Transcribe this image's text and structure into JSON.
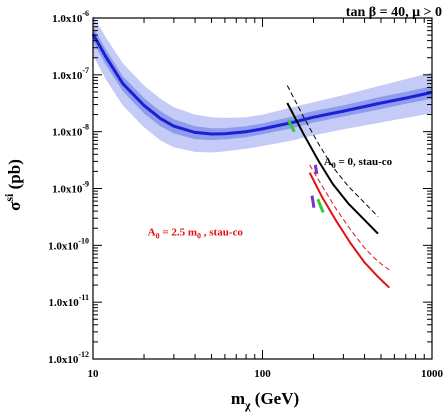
{
  "chart_data": {
    "type": "line",
    "title": "tan β = 40,  μ > 0",
    "xlabel": {
      "main": "m",
      "sub": "χ",
      "rest": " (GeV)"
    },
    "ylabel": {
      "main": "σ",
      "sup": "si",
      "rest": " (pb)"
    },
    "xscale": "log",
    "yscale": "log",
    "xlim": [
      10,
      1000
    ],
    "ylim": [
      1e-12,
      1e-06
    ],
    "x_ticks": [
      {
        "value": 10,
        "label": "10"
      },
      {
        "value": 100,
        "label": "100"
      },
      {
        "value": 1000,
        "label": "1000"
      }
    ],
    "y_ticks": [
      {
        "value": 1e-12,
        "label": "1.0x10",
        "exp": "-12"
      },
      {
        "value": 1e-11,
        "label": "1.0x10",
        "exp": "-11"
      },
      {
        "value": 1e-10,
        "label": "1.0x10",
        "exp": "-10"
      },
      {
        "value": 1e-09,
        "label": "1.0x10",
        "exp": "-9"
      },
      {
        "value": 1e-08,
        "label": "1.0x10",
        "exp": "-8"
      },
      {
        "value": 1e-07,
        "label": "1.0x10",
        "exp": "-7"
      },
      {
        "value": 1e-06,
        "label": "1.0x10",
        "exp": "-6"
      }
    ],
    "bands": [
      {
        "color": "#c4cbf6",
        "x": [
          10,
          12,
          15,
          20,
          25,
          30,
          40,
          50,
          60,
          80,
          100,
          150,
          200,
          300,
          500,
          700,
          1000
        ],
        "lower": [
          2.2e-07,
          8e-08,
          2.9e-08,
          1.2e-08,
          7e-09,
          5.3e-09,
          4.4e-09,
          4.3e-09,
          4.5e-09,
          5e-09,
          5.6e-09,
          7e-09,
          8.6e-09,
          1.1e-08,
          1.45e-08,
          1.75e-08,
          2.1e-08
        ],
        "upper": [
          1.1e-06,
          4.4e-07,
          1.6e-07,
          6.5e-08,
          3.8e-08,
          2.7e-08,
          2e-08,
          1.8e-08,
          1.75e-08,
          1.8e-08,
          2e-08,
          2.7e-08,
          3.3e-08,
          4.4e-08,
          6.5e-08,
          8.4e-08,
          1.1e-07
        ]
      },
      {
        "color": "#8e9cee",
        "x": [
          10,
          12,
          15,
          20,
          25,
          30,
          40,
          50,
          60,
          80,
          100,
          150,
          200,
          300,
          500,
          700,
          1000
        ],
        "lower": [
          3.8e-07,
          1.45e-07,
          5.2e-08,
          2.1e-08,
          1.25e-08,
          9.3e-09,
          7.4e-09,
          7.1e-09,
          7.3e-09,
          8e-09,
          9e-09,
          1.15e-08,
          1.45e-08,
          1.85e-08,
          2.5e-08,
          3.1e-08,
          3.8e-08
        ],
        "upper": [
          7e-07,
          2.7e-07,
          9.5e-08,
          3.9e-08,
          2.3e-08,
          1.65e-08,
          1.25e-08,
          1.15e-08,
          1.15e-08,
          1.25e-08,
          1.4e-08,
          1.85e-08,
          2.3e-08,
          2.9e-08,
          4.1e-08,
          5e-08,
          6.3e-08
        ]
      }
    ],
    "series": [
      {
        "color": "#1c1fd4",
        "dash": "solid",
        "width": 3,
        "x": [
          10,
          12,
          15,
          20,
          25,
          30,
          40,
          50,
          60,
          80,
          100,
          150,
          200,
          300,
          500,
          700,
          1000
        ],
        "y": [
          5.2e-07,
          2e-07,
          7e-08,
          2.9e-08,
          1.7e-08,
          1.25e-08,
          9.7e-09,
          9.1e-09,
          9.2e-09,
          1e-08,
          1.12e-08,
          1.45e-08,
          1.8e-08,
          2.3e-08,
          3.2e-08,
          3.9e-08,
          4.9e-08
        ]
      },
      {
        "color": "#000000",
        "dash": "solid",
        "width": 2,
        "x": [
          140,
          175,
          215,
          260,
          320,
          400,
          480
        ],
        "y": [
          3.2e-08,
          9e-09,
          3e-09,
          1.2e-09,
          5.5e-10,
          2.8e-10,
          1.6e-10
        ]
      },
      {
        "color": "#000000",
        "dash": "dashed",
        "width": 1,
        "x": [
          140,
          175,
          215,
          260,
          320,
          400,
          480
        ],
        "y": [
          6.5e-08,
          1.8e-08,
          6e-09,
          2.4e-09,
          1.1e-09,
          5.6e-10,
          3.2e-10
        ]
      },
      {
        "color": "#e11111",
        "dash": "solid",
        "width": 2,
        "x": [
          190,
          225,
          270,
          330,
          400,
          480,
          560
        ],
        "y": [
          1.9e-09,
          7e-10,
          2.8e-10,
          1.1e-10,
          5e-11,
          2.8e-11,
          1.8e-11
        ]
      },
      {
        "color": "#e11111",
        "dash": "dashed",
        "width": 1,
        "x": [
          190,
          225,
          270,
          330,
          400,
          480,
          560
        ],
        "y": [
          2.6e-09,
          1.1e-09,
          4.5e-10,
          1.9e-10,
          9e-11,
          5.2e-11,
          3.7e-11
        ]
      }
    ],
    "markers": [
      {
        "color": "#37c837",
        "x": [
          142,
          154
        ],
        "y": [
          1.6e-08,
          1e-08
        ]
      },
      {
        "color": "#37c837",
        "x": [
          212,
          228
        ],
        "y": [
          6.5e-10,
          3.8e-10
        ]
      },
      {
        "color": "#7733cc",
        "x": [
          205,
          209
        ],
        "y": [
          2.6e-09,
          1.8e-09
        ]
      },
      {
        "color": "#7733cc",
        "x": [
          196,
          201
        ],
        "y": [
          7.5e-10,
          4.6e-10
        ]
      }
    ],
    "annotations": [
      {
        "id": "a0",
        "color": "#000000",
        "x": 230,
        "y": 2.6e-09,
        "pre": "A",
        "sub": "0",
        "post": " = 0, stau-co"
      },
      {
        "id": "a25",
        "color": "#e11111",
        "x": 21,
        "y": 1.5e-10,
        "pre": "A",
        "sub": "0",
        "post": " = 2.5 m",
        "sub2": "0",
        "post2": " , stau-co"
      }
    ]
  }
}
